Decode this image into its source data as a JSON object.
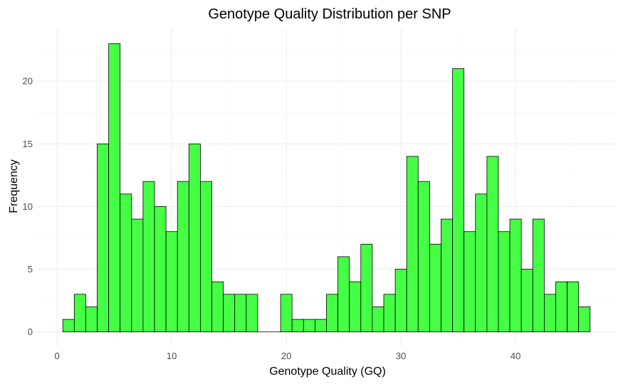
{
  "chart_data": {
    "type": "bar",
    "subtype": "histogram",
    "title": "Genotype Quality Distribution per SNP",
    "xlabel": "Genotype Quality (GQ)",
    "ylabel": "Frequency",
    "bin_width": 1,
    "x": [
      1,
      2,
      3,
      4,
      5,
      6,
      7,
      8,
      9,
      10,
      11,
      12,
      13,
      14,
      15,
      16,
      17,
      18,
      19,
      20,
      21,
      22,
      23,
      24,
      25,
      26,
      27,
      28,
      29,
      30,
      31,
      32,
      33,
      34,
      35,
      36,
      37,
      38,
      39,
      40,
      41,
      42,
      43,
      44,
      45,
      46
    ],
    "values": [
      1,
      3,
      2,
      15,
      23,
      11,
      9,
      12,
      10,
      8,
      12,
      15,
      12,
      4,
      3,
      3,
      3,
      0,
      0,
      3,
      1,
      1,
      1,
      3,
      6,
      4,
      7,
      2,
      3,
      5,
      14,
      12,
      7,
      9,
      21,
      8,
      11,
      14,
      8,
      9,
      5,
      9,
      3,
      4,
      4,
      2
    ],
    "xlim": [
      -1.75,
      48.75
    ],
    "ylim": [
      -1.15,
      24.15
    ],
    "x_ticks": [
      0,
      10,
      20,
      30,
      40
    ],
    "y_ticks": [
      0,
      5,
      10,
      15,
      20
    ],
    "grid": true,
    "legend": "none",
    "bar_fill": "#44ff44",
    "bar_stroke": "#000000",
    "grid_major_color": "#ebebeb",
    "grid_minor_color": "#f5f5f5"
  }
}
